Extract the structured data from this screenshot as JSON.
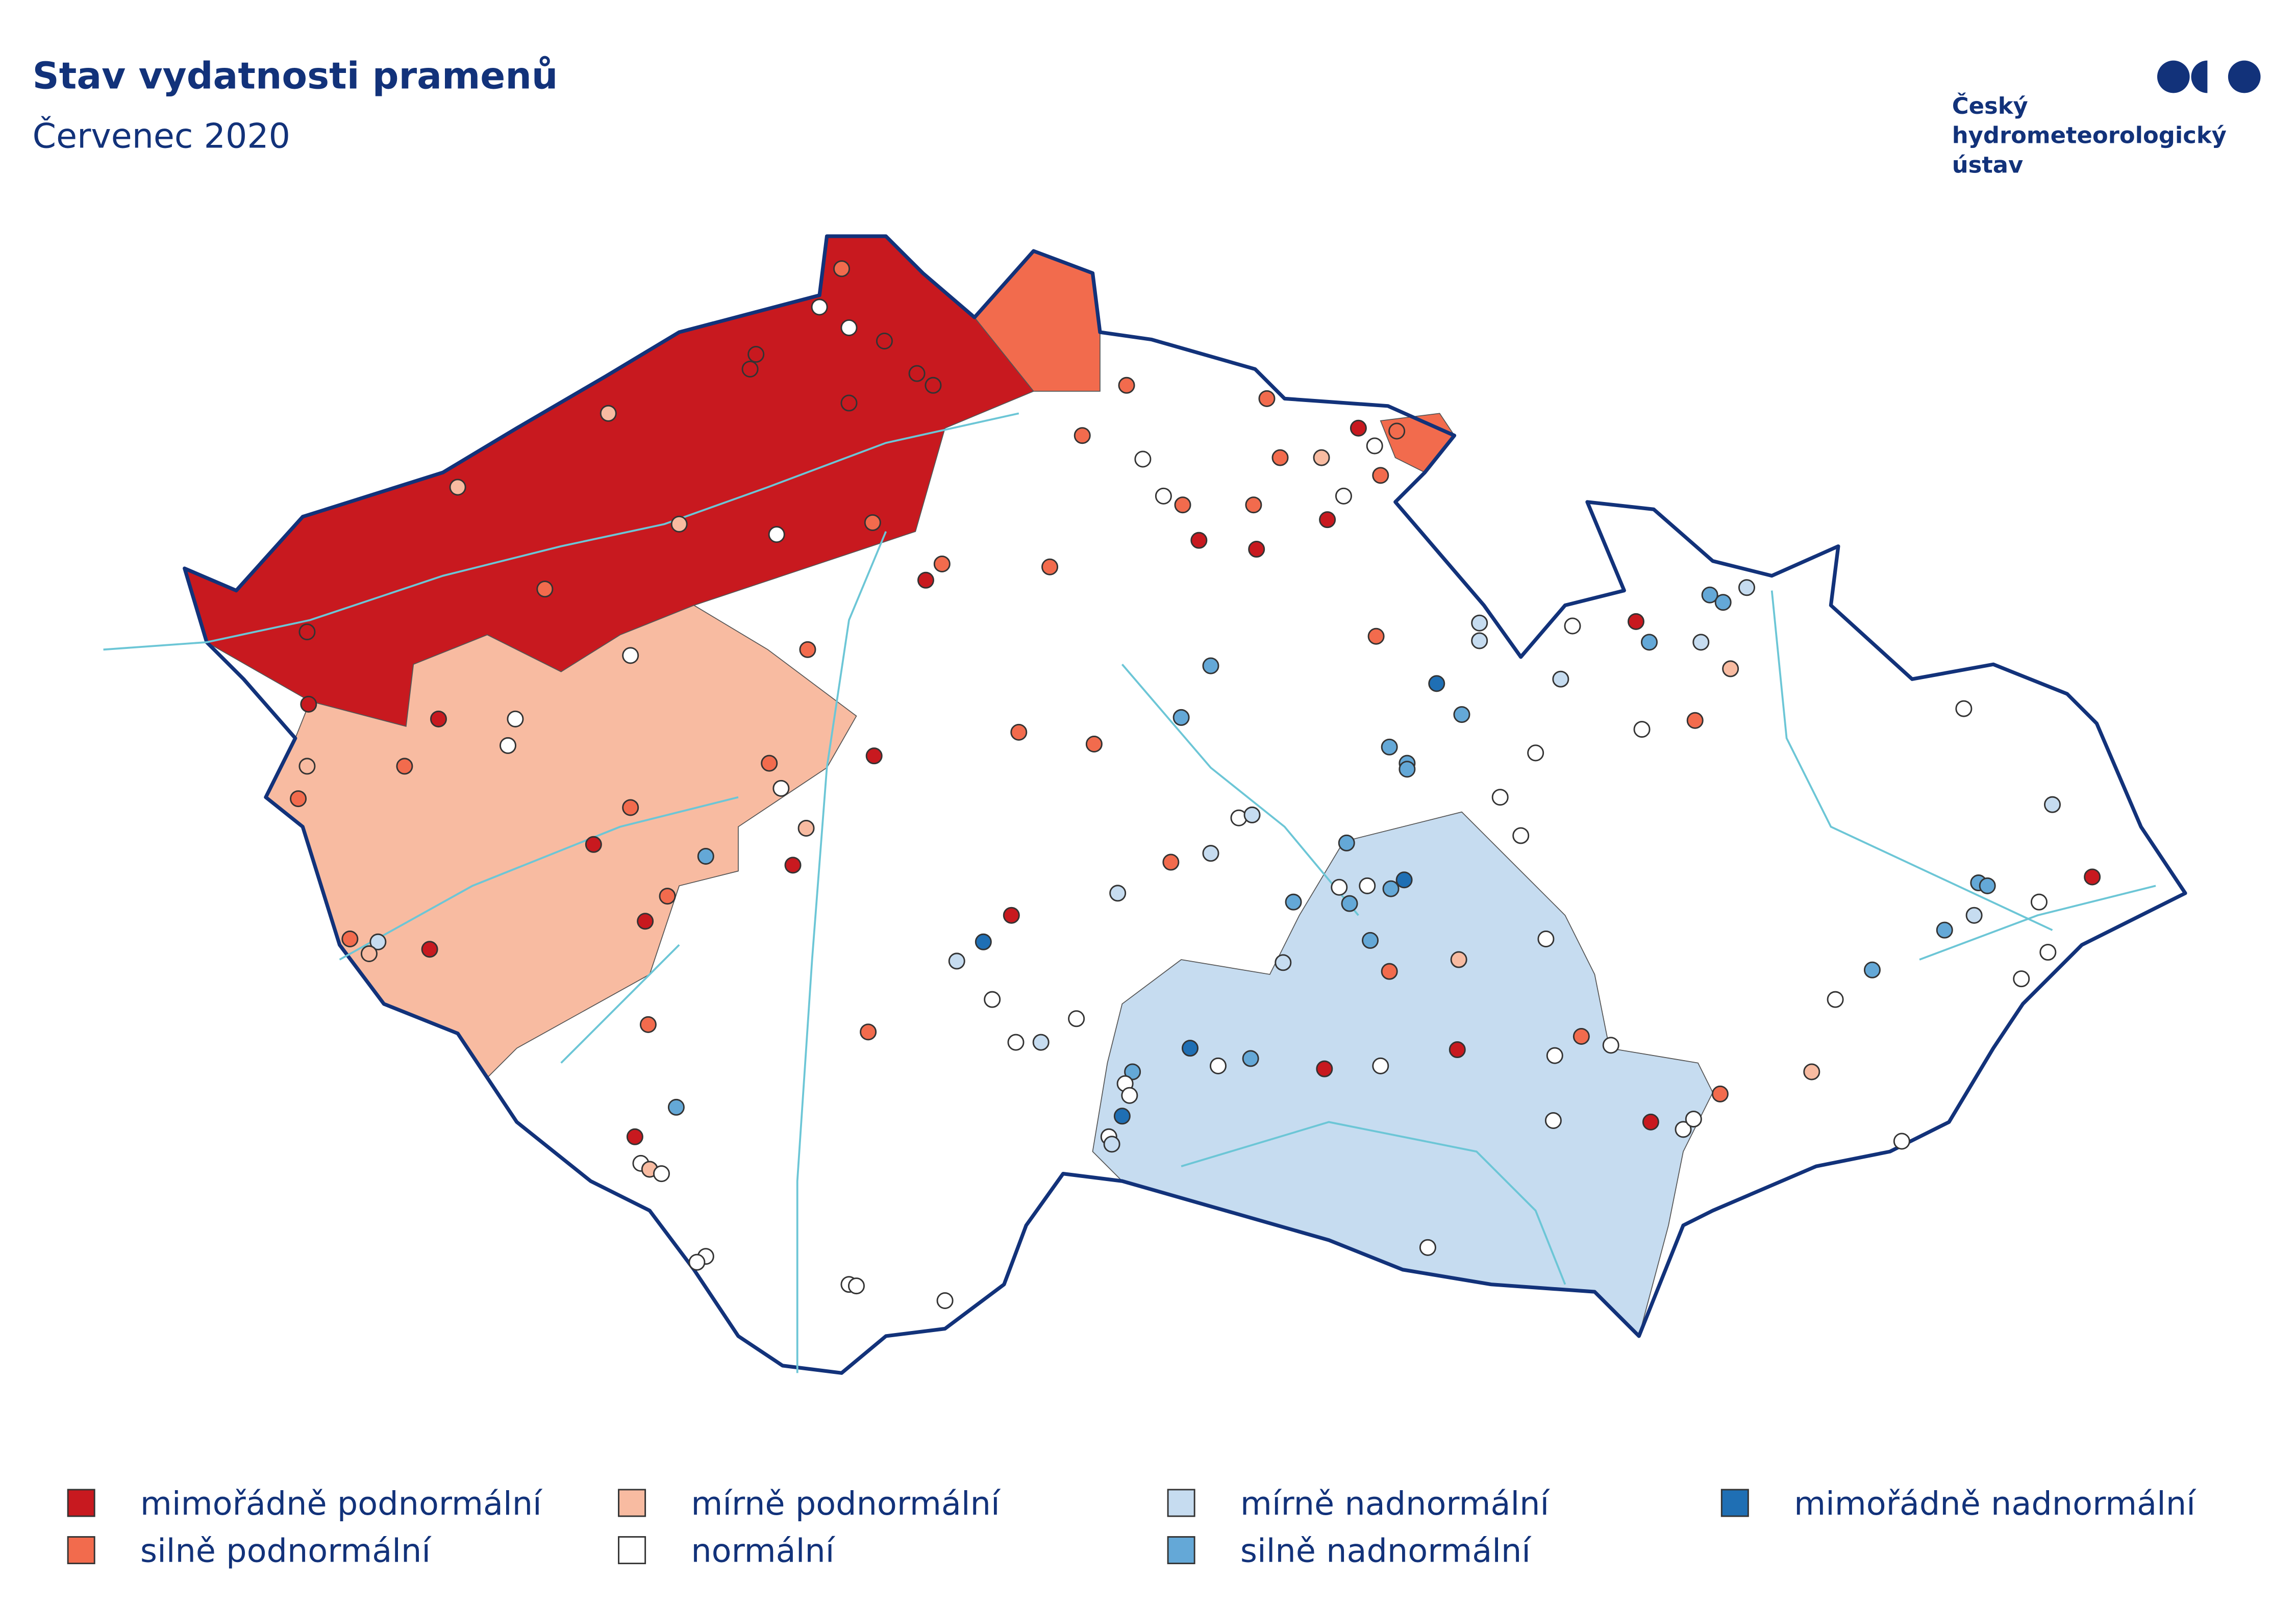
{
  "header": {
    "title": "Stav vydatnosti pramenů",
    "subtitle": "Červenec 2020"
  },
  "logo": {
    "lines": [
      "Český",
      "hydrometeorologický",
      "ústav"
    ]
  },
  "legend": {
    "items": [
      {
        "label": "mimořádně podnormální",
        "color": "#c8191f"
      },
      {
        "label": "silně podnormální",
        "color": "#f26b4d"
      },
      {
        "label": "mírně podnormální",
        "color": "#f8bba1"
      },
      {
        "label": "normální",
        "color": "#ffffff"
      },
      {
        "label": "mírně nadnormální",
        "color": "#c6dcf0"
      },
      {
        "label": "silně nadnormální",
        "color": "#64a8d7"
      },
      {
        "label": "mimořádně nadnormální",
        "color": "#1f6fb4"
      }
    ]
  }
}
